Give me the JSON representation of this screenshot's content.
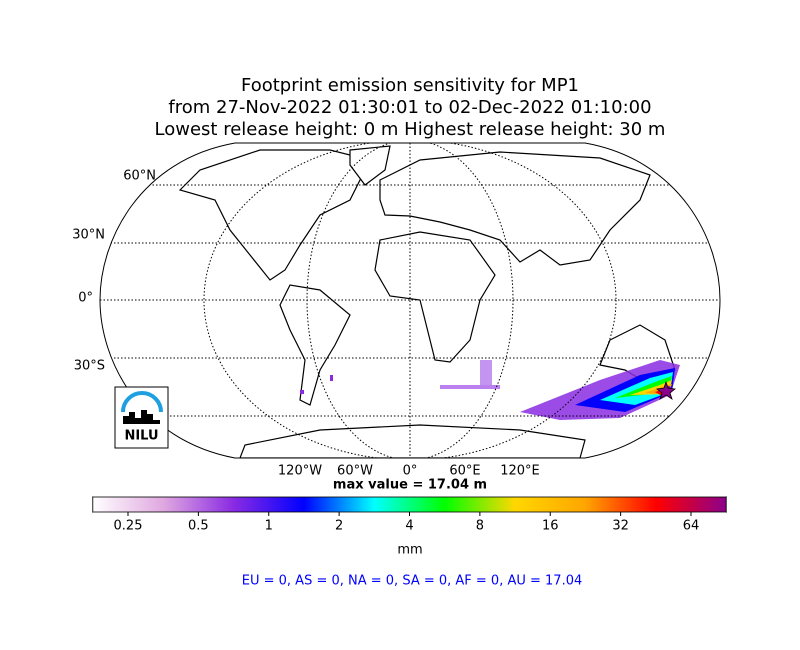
{
  "header": {
    "title": [
      "Footprint emission sensitivity for MP1",
      "from 27-Nov-2022 01:30:01 to 02-Dec-2022 01:10:00",
      "Lowest release height: 0 m      Highest release height: 30 m"
    ]
  },
  "map": {
    "lat_labels": [
      "60°N",
      "30°N",
      "0°",
      "30°S"
    ],
    "lon_labels": [
      "120°W",
      "60°W",
      "0°",
      "60°E",
      "120°E"
    ],
    "max_value": "max value = 17.04 m",
    "logo": "NILU"
  },
  "colorbar": {
    "ticks": [
      0.25,
      0.5,
      1,
      2,
      4,
      8,
      16,
      32,
      64
    ],
    "colors": [
      "#ffffff",
      "#e0a8e0",
      "#8a2be2",
      "#0000ff",
      "#00ffff",
      "#00ff00",
      "#ffd700",
      "#ffa500",
      "#ff0000",
      "#8b008b"
    ],
    "label": "mm",
    "scale": "log"
  },
  "footer": {
    "regions": "EU = 0,  AS = 0,  NA = 0,  SA = 0,  AF = 0,  AU = 17.04"
  }
}
